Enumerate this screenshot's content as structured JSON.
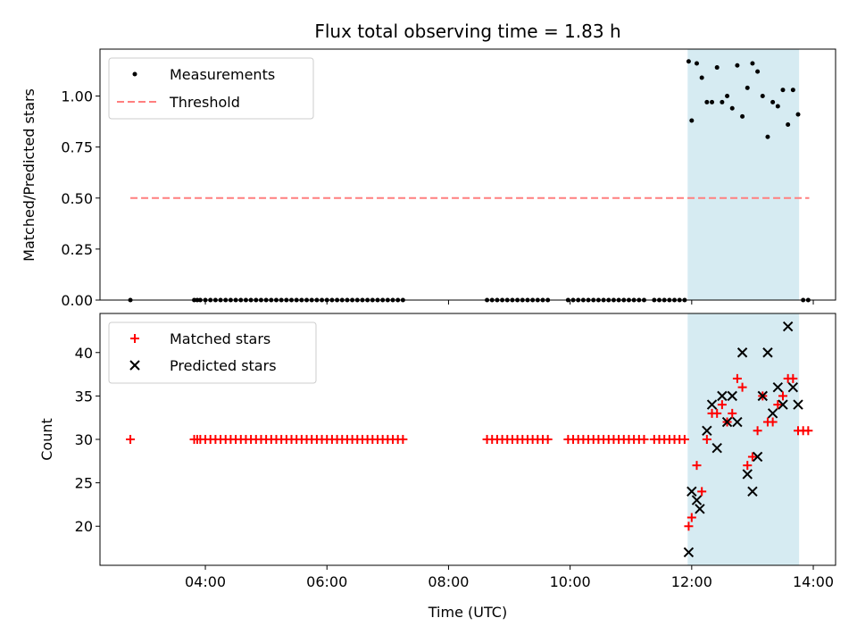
{
  "chart_data": [
    {
      "type": "scatter",
      "title": "Flux total observing time = 1.83 h",
      "xlabel": "",
      "ylabel": "Matched/Predicted stars",
      "xlim": [
        "02:16",
        "14:22"
      ],
      "ylim": [
        0,
        1.23
      ],
      "yticks": [
        "0.00",
        "0.25",
        "0.50",
        "0.75",
        "1.00"
      ],
      "ytick_values": [
        0,
        0.25,
        0.5,
        0.75,
        1.0
      ],
      "highlight_span": {
        "x": [
          "11:56",
          "13:46"
        ],
        "color": "#add8e6"
      },
      "legend": {
        "placement": "top-left",
        "entries": [
          "Measurements",
          "Threshold"
        ]
      },
      "series": [
        {
          "name": "Measurements",
          "marker": "dot",
          "color": "#000000",
          "x": [
            "02:46",
            "03:49",
            "03:52",
            "03:55",
            "04:00",
            "04:05",
            "04:10",
            "04:15",
            "04:20",
            "04:25",
            "04:30",
            "04:35",
            "04:40",
            "04:45",
            "04:50",
            "04:55",
            "05:00",
            "05:05",
            "05:10",
            "05:15",
            "05:20",
            "05:25",
            "05:30",
            "05:35",
            "05:40",
            "05:45",
            "05:50",
            "05:55",
            "06:00",
            "06:05",
            "06:10",
            "06:15",
            "06:20",
            "06:25",
            "06:30",
            "06:35",
            "06:40",
            "06:45",
            "06:50",
            "06:55",
            "07:00",
            "07:05",
            "07:10",
            "07:15",
            "08:38",
            "08:43",
            "08:48",
            "08:53",
            "08:58",
            "09:03",
            "09:08",
            "09:13",
            "09:18",
            "09:23",
            "09:28",
            "09:33",
            "09:38",
            "09:58",
            "10:03",
            "10:08",
            "10:13",
            "10:18",
            "10:23",
            "10:28",
            "10:33",
            "10:38",
            "10:43",
            "10:48",
            "10:53",
            "10:58",
            "11:03",
            "11:08",
            "11:13",
            "11:23",
            "11:28",
            "11:33",
            "11:38",
            "11:43",
            "11:48",
            "11:53",
            "11:57",
            "12:00",
            "12:05",
            "12:10",
            "12:15",
            "12:20",
            "12:25",
            "12:30",
            "12:35",
            "12:40",
            "12:45",
            "12:50",
            "12:55",
            "13:00",
            "13:05",
            "13:10",
            "13:15",
            "13:20",
            "13:25",
            "13:30",
            "13:35",
            "13:40",
            "13:45",
            "13:50",
            "13:55"
          ],
          "y": [
            0,
            0,
            0,
            0,
            0,
            0,
            0,
            0,
            0,
            0,
            0,
            0,
            0,
            0,
            0,
            0,
            0,
            0,
            0,
            0,
            0,
            0,
            0,
            0,
            0,
            0,
            0,
            0,
            0,
            0,
            0,
            0,
            0,
            0,
            0,
            0,
            0,
            0,
            0,
            0,
            0,
            0,
            0,
            0,
            0,
            0,
            0,
            0,
            0,
            0,
            0,
            0,
            0,
            0,
            0,
            0,
            0,
            0,
            0,
            0,
            0,
            0,
            0,
            0,
            0,
            0,
            0,
            0,
            0,
            0,
            0,
            0,
            0,
            0,
            0,
            0,
            0,
            0,
            0,
            0,
            1.17,
            0.88,
            1.16,
            1.09,
            0.97,
            0.97,
            1.14,
            0.97,
            1.0,
            0.94,
            1.15,
            0.9,
            1.04,
            1.16,
            1.12,
            1.0,
            0.8,
            0.97,
            0.95,
            1.03,
            0.86,
            1.03,
            0.91,
            0,
            0
          ]
        },
        {
          "name": "Threshold",
          "style": "dashed",
          "color": "#ff7f7f",
          "x": [
            "02:46",
            "13:56"
          ],
          "y": [
            0.5,
            0.5
          ]
        }
      ]
    },
    {
      "type": "scatter",
      "title": "",
      "xlabel": "Time (UTC)",
      "ylabel": "Count",
      "xlim": [
        "02:16",
        "14:22"
      ],
      "ylim": [
        15.5,
        44.5
      ],
      "xticks": [
        "04:00",
        "06:00",
        "08:00",
        "10:00",
        "12:00",
        "14:00"
      ],
      "yticks": [
        "20",
        "25",
        "30",
        "35",
        "40"
      ],
      "ytick_values": [
        20,
        25,
        30,
        35,
        40
      ],
      "highlight_span": {
        "x": [
          "11:56",
          "13:46"
        ],
        "color": "#add8e6"
      },
      "legend": {
        "placement": "top-left",
        "entries": [
          "Matched stars",
          "Predicted stars"
        ]
      },
      "series": [
        {
          "name": "Matched stars",
          "marker": "plus",
          "color": "#ff0000",
          "x": [
            "02:46",
            "03:49",
            "03:52",
            "03:55",
            "04:00",
            "04:05",
            "04:10",
            "04:15",
            "04:20",
            "04:25",
            "04:30",
            "04:35",
            "04:40",
            "04:45",
            "04:50",
            "04:55",
            "05:00",
            "05:05",
            "05:10",
            "05:15",
            "05:20",
            "05:25",
            "05:30",
            "05:35",
            "05:40",
            "05:45",
            "05:50",
            "05:55",
            "06:00",
            "06:05",
            "06:10",
            "06:15",
            "06:20",
            "06:25",
            "06:30",
            "06:35",
            "06:40",
            "06:45",
            "06:50",
            "06:55",
            "07:00",
            "07:05",
            "07:10",
            "07:15",
            "08:38",
            "08:43",
            "08:48",
            "08:53",
            "08:58",
            "09:03",
            "09:08",
            "09:13",
            "09:18",
            "09:23",
            "09:28",
            "09:33",
            "09:38",
            "09:58",
            "10:03",
            "10:08",
            "10:13",
            "10:18",
            "10:23",
            "10:28",
            "10:33",
            "10:38",
            "10:43",
            "10:48",
            "10:53",
            "10:58",
            "11:03",
            "11:08",
            "11:13",
            "11:23",
            "11:28",
            "11:33",
            "11:38",
            "11:43",
            "11:48",
            "11:53",
            "11:57",
            "12:00",
            "12:05",
            "12:10",
            "12:15",
            "12:20",
            "12:25",
            "12:30",
            "12:35",
            "12:40",
            "12:45",
            "12:50",
            "12:55",
            "13:00",
            "13:05",
            "13:10",
            "13:15",
            "13:20",
            "13:25",
            "13:30",
            "13:35",
            "13:40",
            "13:45",
            "13:50",
            "13:55"
          ],
          "y": [
            30,
            30,
            30,
            30,
            30,
            30,
            30,
            30,
            30,
            30,
            30,
            30,
            30,
            30,
            30,
            30,
            30,
            30,
            30,
            30,
            30,
            30,
            30,
            30,
            30,
            30,
            30,
            30,
            30,
            30,
            30,
            30,
            30,
            30,
            30,
            30,
            30,
            30,
            30,
            30,
            30,
            30,
            30,
            30,
            30,
            30,
            30,
            30,
            30,
            30,
            30,
            30,
            30,
            30,
            30,
            30,
            30,
            30,
            30,
            30,
            30,
            30,
            30,
            30,
            30,
            30,
            30,
            30,
            30,
            30,
            30,
            30,
            30,
            30,
            30,
            30,
            30,
            30,
            30,
            30,
            20,
            21,
            27,
            24,
            30,
            33,
            33,
            34,
            32,
            33,
            37,
            36,
            27,
            28,
            31,
            35,
            32,
            32,
            34,
            35,
            37,
            37,
            31,
            31,
            31
          ]
        },
        {
          "name": "Predicted stars",
          "marker": "x",
          "color": "#000000",
          "x": [
            "11:57",
            "12:00",
            "12:05",
            "12:08",
            "12:15",
            "12:20",
            "12:25",
            "12:30",
            "12:35",
            "12:40",
            "12:45",
            "12:50",
            "12:55",
            "13:00",
            "13:05",
            "13:10",
            "13:15",
            "13:20",
            "13:25",
            "13:30",
            "13:35",
            "13:40",
            "13:45"
          ],
          "y": [
            17,
            24,
            23,
            22,
            31,
            34,
            29,
            35,
            32,
            35,
            32,
            40,
            26,
            24,
            28,
            35,
            40,
            33,
            36,
            34,
            43,
            36,
            34
          ]
        }
      ]
    }
  ]
}
